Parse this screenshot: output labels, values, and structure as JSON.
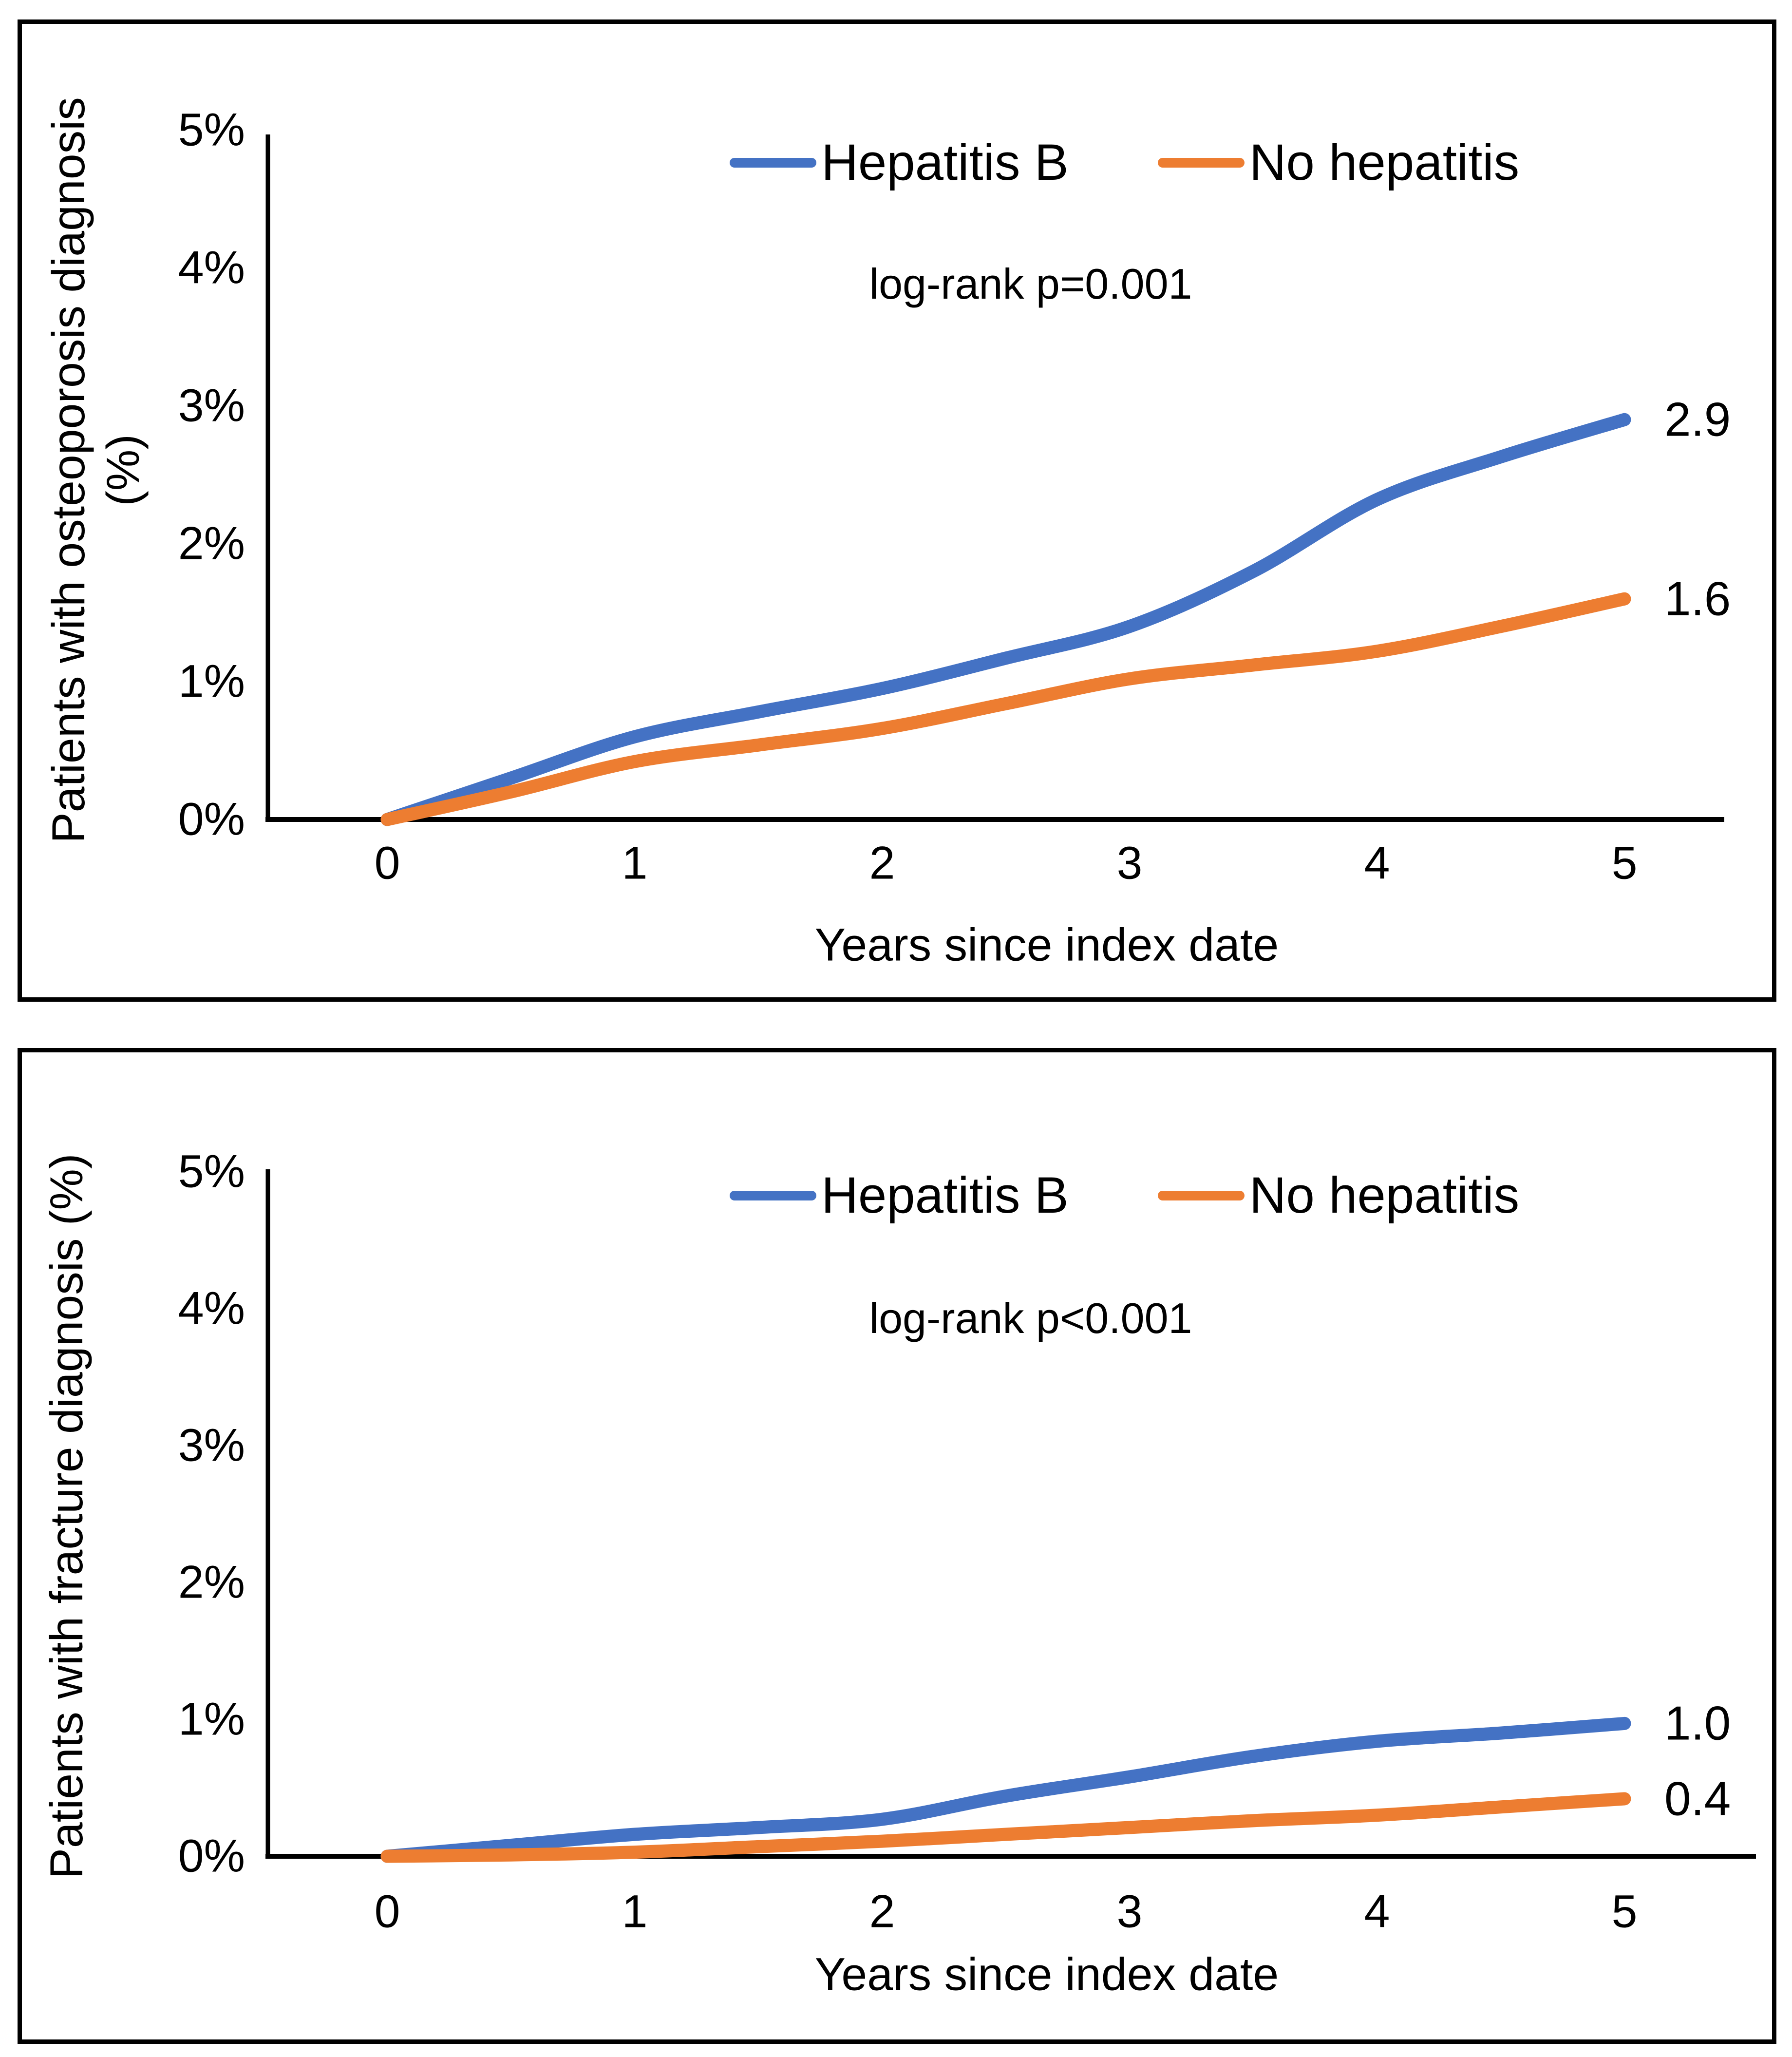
{
  "chart_data": [
    {
      "type": "line",
      "title": "",
      "xlabel": "Years since index date",
      "ylabel": "Patients with osteoporosis diagnosis (%)",
      "ylabel_lines": [
        "Patients with osteoporosis diagnosis",
        "(%)"
      ],
      "annotation": "log-rank p=0.001",
      "x": [
        0,
        0.5,
        1,
        1.5,
        2,
        2.5,
        3,
        3.5,
        4,
        4.5,
        5
      ],
      "xlim": [
        0,
        5
      ],
      "ylim": [
        0,
        5
      ],
      "xtick_labels": [
        "0",
        "1",
        "2",
        "3",
        "4",
        "5"
      ],
      "ytick_labels": [
        "0%",
        "1%",
        "2%",
        "3%",
        "4%",
        "5%"
      ],
      "grid": false,
      "legend_position": "top-center",
      "series": [
        {
          "name": "Hepatitis B",
          "color": "#4472C4",
          "end_label": "2.9",
          "values": [
            0,
            0.3,
            0.6,
            0.78,
            0.95,
            1.17,
            1.4,
            1.8,
            2.32,
            2.63,
            2.9
          ]
        },
        {
          "name": "No hepatitis",
          "color": "#ED7D31",
          "end_label": "1.6",
          "values": [
            0,
            0.2,
            0.42,
            0.54,
            0.66,
            0.84,
            1.02,
            1.12,
            1.22,
            1.4,
            1.6
          ]
        }
      ]
    },
    {
      "type": "line",
      "title": "",
      "xlabel": "Years since index date",
      "ylabel": "Patients with fracture diagnosis (%)",
      "ylabel_lines": [
        "Patients with fracture diagnosis (%)"
      ],
      "annotation": "log-rank p<0.001",
      "x": [
        0,
        0.5,
        1,
        1.5,
        2,
        2.5,
        3,
        3.5,
        4,
        4.5,
        5
      ],
      "xlim": [
        0,
        5
      ],
      "ylim": [
        0,
        5
      ],
      "xtick_labels": [
        "0",
        "1",
        "2",
        "3",
        "4",
        "5"
      ],
      "ytick_labels": [
        "0%",
        "1%",
        "2%",
        "3%",
        "4%",
        "5%"
      ],
      "grid": false,
      "legend_position": "top-center",
      "series": [
        {
          "name": "Hepatitis B",
          "color": "#4472C4",
          "end_label": "1.0",
          "values": [
            0,
            0.08,
            0.16,
            0.21,
            0.27,
            0.44,
            0.58,
            0.73,
            0.84,
            0.9,
            0.97
          ]
        },
        {
          "name": "No hepatitis",
          "color": "#ED7D31",
          "end_label": "0.4",
          "values": [
            0,
            0.01,
            0.03,
            0.07,
            0.11,
            0.16,
            0.21,
            0.26,
            0.3,
            0.36,
            0.42
          ]
        }
      ]
    }
  ]
}
